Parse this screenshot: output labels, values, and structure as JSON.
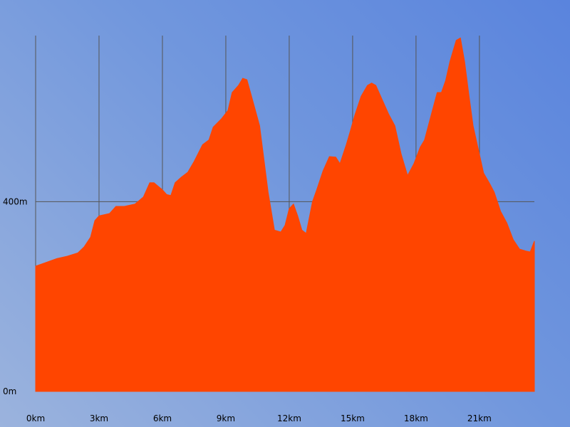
{
  "chart_data": {
    "type": "area",
    "title": "",
    "xlabel": "",
    "ylabel": "",
    "x_unit": "km",
    "y_unit": "m",
    "xlim": [
      0,
      23.6
    ],
    "ylim": [
      0,
      750
    ],
    "x_ticks": [
      {
        "value": 0,
        "label": "0km"
      },
      {
        "value": 3,
        "label": "3km"
      },
      {
        "value": 6,
        "label": "6km"
      },
      {
        "value": 9,
        "label": "9km"
      },
      {
        "value": 12,
        "label": "12km"
      },
      {
        "value": 15,
        "label": "15km"
      },
      {
        "value": 18,
        "label": "18km"
      },
      {
        "value": 21,
        "label": "21km"
      }
    ],
    "y_ticks": [
      {
        "value": 0,
        "label": "0m"
      },
      {
        "value": 400,
        "label": "400m"
      }
    ],
    "grid": true,
    "legend": "none",
    "fill_color": "#ff4500",
    "grid_color": "#555555",
    "series": [
      {
        "x": [
          0,
          0.5,
          1,
          1.5,
          2,
          2.3,
          2.6,
          2.8,
          3.0,
          3.5,
          3.8,
          4.2,
          4.7,
          5.1,
          5.4,
          5.6,
          6.0,
          6.2,
          6.4,
          6.6,
          6.9,
          7.2,
          7.5,
          7.9,
          8.2,
          8.4,
          8.8,
          9.1,
          9.3,
          9.6,
          9.8,
          10.0,
          10.2,
          10.6,
          11.0,
          11.3,
          11.6,
          11.8,
          12.0,
          12.2,
          12.4,
          12.6,
          12.8,
          13.1,
          13.3,
          13.6,
          13.9,
          14.2,
          14.4,
          14.7,
          14.9,
          15.1,
          15.4,
          15.7,
          15.9,
          16.1,
          16.4,
          16.7,
          17.0,
          17.3,
          17.6,
          17.9,
          18.2,
          18.4,
          18.7,
          19.0,
          19.2,
          19.4,
          19.6,
          19.9,
          20.1,
          20.3,
          20.5,
          20.7,
          20.9,
          21.2,
          21.5,
          21.7,
          22.0,
          22.3,
          22.6,
          22.9,
          23.2,
          23.4,
          23.6
        ],
        "y": [
          264,
          272,
          280,
          285,
          292,
          305,
          325,
          360,
          370,
          375,
          390,
          390,
          395,
          410,
          440,
          440,
          425,
          415,
          413,
          440,
          452,
          462,
          485,
          520,
          530,
          557,
          575,
          592,
          630,
          645,
          660,
          657,
          625,
          560,
          420,
          340,
          336,
          350,
          385,
          395,
          370,
          340,
          333,
          400,
          425,
          465,
          495,
          494,
          480,
          520,
          550,
          582,
          622,
          645,
          650,
          645,
          615,
          585,
          560,
          500,
          455,
          480,
          515,
          530,
          580,
          630,
          630,
          655,
          695,
          740,
          745,
          695,
          625,
          560,
          520,
          460,
          437,
          420,
          380,
          355,
          320,
          300,
          296,
          294,
          317
        ]
      }
    ]
  }
}
